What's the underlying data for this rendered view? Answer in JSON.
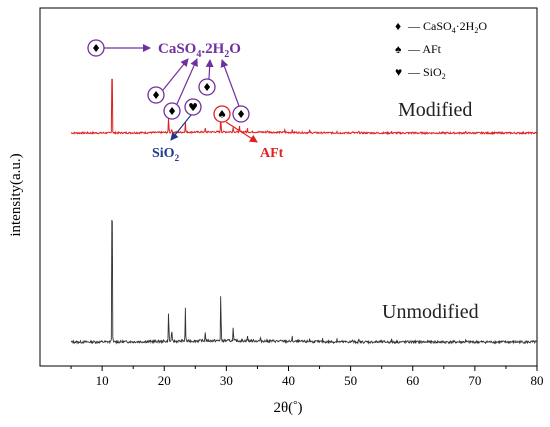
{
  "chart_data": {
    "type": "line",
    "xlabel_prefix": "2θ(",
    "xlabel_unit": "°",
    "xlabel_suffix": ")",
    "ylabel": "intensity(a.u.)",
    "xlim": [
      0,
      80
    ],
    "xticks": [
      10,
      20,
      30,
      40,
      50,
      60,
      70,
      80
    ],
    "grid": false,
    "colors": {
      "modified": "#e02020",
      "unmodified": "#333333",
      "purple": "#7030a0",
      "blue": "#1f3a8a",
      "red": "#e02020"
    },
    "legend": {
      "placement": "top-right",
      "entries": [
        {
          "symbol": "♦",
          "text": "— CaSO",
          "sub": "4",
          "rest": "·2H",
          "sub2": "2",
          "rest2": "O"
        },
        {
          "symbol": "♠",
          "text": "— AFt",
          "sub": "",
          "rest": "",
          "sub2": "",
          "rest2": ""
        },
        {
          "symbol": "♥",
          "text": "— SiO",
          "sub": "2",
          "rest": "",
          "sub2": "",
          "rest2": ""
        }
      ]
    },
    "series": [
      {
        "name": "Modified",
        "baseline": 0.2,
        "peaks": [
          [
            11.6,
            3.0
          ],
          [
            20.7,
            0.55
          ],
          [
            21.2,
            0.15
          ],
          [
            23.4,
            0.38
          ],
          [
            26.6,
            0.12
          ],
          [
            29.1,
            0.62
          ],
          [
            31.1,
            0.18
          ],
          [
            32.1,
            0.2
          ],
          [
            33.4,
            0.12
          ],
          [
            36.6,
            0.06
          ],
          [
            39.4,
            0.1
          ],
          [
            40.6,
            0.08
          ],
          [
            43.4,
            0.08
          ],
          [
            47.8,
            0.07
          ],
          [
            50.3,
            0.06
          ],
          [
            51.3,
            0.05
          ],
          [
            56.6,
            0.04
          ],
          [
            60.0,
            0.03
          ],
          [
            68.5,
            0.03
          ]
        ]
      },
      {
        "name": "Unmodified",
        "baseline": 0.15,
        "peaks": [
          [
            11.6,
            4.4
          ],
          [
            20.7,
            0.75
          ],
          [
            21.2,
            0.3
          ],
          [
            23.4,
            0.75
          ],
          [
            26.6,
            0.22
          ],
          [
            29.1,
            1.15
          ],
          [
            31.1,
            0.32
          ],
          [
            33.4,
            0.12
          ],
          [
            35.5,
            0.06
          ],
          [
            40.6,
            0.1
          ],
          [
            43.4,
            0.08
          ],
          [
            45.5,
            0.06
          ],
          [
            47.8,
            0.08
          ],
          [
            50.3,
            0.06
          ],
          [
            51.3,
            0.05
          ],
          [
            56.6,
            0.05
          ],
          [
            60.0,
            0.04
          ],
          [
            68.5,
            0.03
          ]
        ]
      }
    ],
    "annotations": {
      "caso4_prefix": "CaSO",
      "caso4_sub1": "4",
      "caso4_mid": ".2H",
      "caso4_sub2": "2",
      "caso4_suffix": "O",
      "sio2_prefix": "SiO",
      "sio2_sub": "2",
      "aft": "AFt",
      "diamond": "♦",
      "spade": "♠",
      "heart": "♥"
    }
  }
}
